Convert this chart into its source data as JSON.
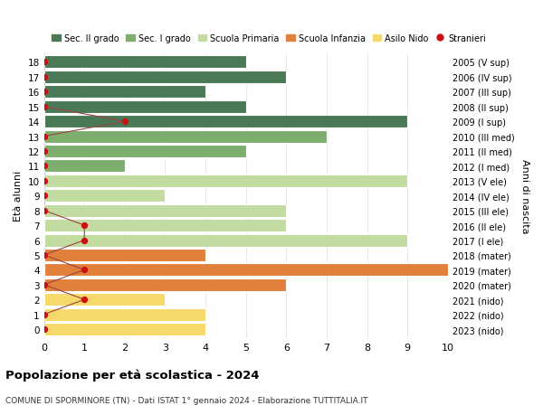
{
  "ages": [
    18,
    17,
    16,
    15,
    14,
    13,
    12,
    11,
    10,
    9,
    8,
    7,
    6,
    5,
    4,
    3,
    2,
    1,
    0
  ],
  "years": [
    "2005 (V sup)",
    "2006 (IV sup)",
    "2007 (III sup)",
    "2008 (II sup)",
    "2009 (I sup)",
    "2010 (III med)",
    "2011 (II med)",
    "2012 (I med)",
    "2013 (V ele)",
    "2014 (IV ele)",
    "2015 (III ele)",
    "2016 (II ele)",
    "2017 (I ele)",
    "2018 (mater)",
    "2019 (mater)",
    "2020 (mater)",
    "2021 (nido)",
    "2022 (nido)",
    "2023 (nido)"
  ],
  "bar_values": [
    5,
    6,
    4,
    5,
    9,
    7,
    5,
    2,
    9,
    3,
    6,
    6,
    9,
    4,
    10,
    6,
    3,
    4,
    4
  ],
  "bar_colors": [
    "#4a7a55",
    "#4a7a55",
    "#4a7a55",
    "#4a7a55",
    "#4a7a55",
    "#7dae6e",
    "#7dae6e",
    "#7dae6e",
    "#c2dba0",
    "#c2dba0",
    "#c2dba0",
    "#c2dba0",
    "#c2dba0",
    "#e0803a",
    "#e0803a",
    "#e0803a",
    "#f5d96a",
    "#f5d96a",
    "#f5d96a"
  ],
  "stranieri_x": [
    0,
    0,
    0,
    0,
    2,
    0,
    0,
    0,
    0,
    0,
    0,
    1,
    1,
    0,
    1,
    0,
    1,
    0,
    0
  ],
  "title": "Popolazione per età scolastica - 2024",
  "subtitle": "COMUNE DI SPORMINORE (TN) - Dati ISTAT 1° gennaio 2024 - Elaborazione TUTTITALIA.IT",
  "ylabel": "Età alunni",
  "right_ylabel": "Anni di nascita",
  "xlim": [
    0,
    10
  ],
  "xticks": [
    0,
    1,
    2,
    3,
    4,
    5,
    6,
    7,
    8,
    9,
    10
  ],
  "legend_labels": [
    "Sec. II grado",
    "Sec. I grado",
    "Scuola Primaria",
    "Scuola Infanzia",
    "Asilo Nido",
    "Stranieri"
  ],
  "legend_colors": [
    "#4a7a55",
    "#7dae6e",
    "#c2dba0",
    "#e0803a",
    "#f5d96a",
    "#cc1111"
  ],
  "bar_height": 0.85,
  "background_color": "#ffffff",
  "grid_color": "#dddddd",
  "stranieri_color": "#cc1111",
  "stranieri_line_color": "#994444"
}
